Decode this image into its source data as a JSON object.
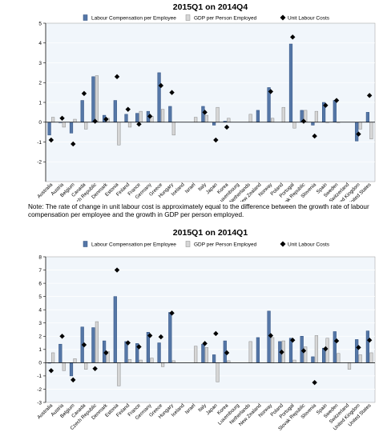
{
  "note": "Note: The rate of change in unit labour cost is approximately equal to the difference between the growth rate of labour compensation per employee and the growth in GDP per person employed.",
  "colors": {
    "plot_bg": "#f1f6fb",
    "labour_comp": "#5577a7",
    "gdp": "#d6d6d6",
    "ulc": "#000000",
    "axis": "#000000",
    "grid": "#ffffff"
  },
  "chart_data": [
    {
      "type": "bar",
      "title": "2015Q1 on 2014Q4",
      "xlabel": "",
      "ylabel": "",
      "ylim": [
        -3,
        5
      ],
      "yticks": [
        -2,
        -1,
        0,
        1,
        2,
        3,
        4,
        5
      ],
      "legend_position": "top",
      "categories": [
        "Australia",
        "Austria",
        "Belgium",
        "Canada",
        "Czech Republic",
        "Denmark",
        "Estonia",
        "Finland",
        "France",
        "Germany",
        "Greece",
        "Hungary",
        "Iceland",
        "Israel",
        "Italy",
        "Japan",
        "Korea",
        "Luxembourg",
        "Netherlands",
        "New Zealand",
        "Norway",
        "Poland",
        "Portugal",
        "Slovak Republic",
        "Slovenia",
        "Spain",
        "Sweden",
        "Switzerland",
        "United Kingdom",
        "United States"
      ],
      "series": [
        {
          "name": "Labour Compensation per Employee",
          "kind": "bar",
          "values": [
            -0.65,
            0.0,
            -0.55,
            1.1,
            2.3,
            0.35,
            1.1,
            0.4,
            0.45,
            0.55,
            2.5,
            0.8,
            null,
            null,
            0.8,
            -0.15,
            0.05,
            null,
            null,
            0.6,
            1.75,
            null,
            3.95,
            0.6,
            -0.15,
            1.0,
            1.1,
            null,
            -0.95,
            0.5
          ]
        },
        {
          "name": "GDP per Person Employed",
          "kind": "bar",
          "values": [
            0.25,
            -0.25,
            0.15,
            -0.35,
            2.35,
            0.2,
            -1.15,
            -0.25,
            0.55,
            0.3,
            0.65,
            -0.65,
            null,
            0.25,
            0.35,
            0.75,
            0.2,
            null,
            0.4,
            null,
            0.2,
            0.75,
            -0.3,
            0.6,
            0.55,
            0.0,
            0.0,
            null,
            -0.35,
            -0.85
          ]
        },
        {
          "name": "Unit Labour Costs",
          "kind": "marker",
          "values": [
            -0.9,
            0.2,
            -1.1,
            1.45,
            0.05,
            0.15,
            2.3,
            0.65,
            -0.1,
            0.3,
            1.85,
            1.5,
            null,
            null,
            0.5,
            -0.9,
            -0.25,
            null,
            null,
            null,
            1.55,
            null,
            4.3,
            0.05,
            -0.7,
            0.85,
            1.1,
            null,
            -0.6,
            1.35
          ]
        }
      ]
    },
    {
      "type": "bar",
      "title": "2015Q1 on 2014Q1",
      "xlabel": "",
      "ylabel": "",
      "ylim": [
        -3,
        8
      ],
      "yticks": [
        -3,
        -2,
        -1,
        0,
        1,
        2,
        3,
        4,
        5,
        6,
        7,
        8
      ],
      "legend_position": "top",
      "categories": [
        "Australia",
        "Austria",
        "Belgium",
        "Canada",
        "Czech Republic",
        "Denmark",
        "Estonia",
        "Finland",
        "France",
        "Germany",
        "Greece",
        "Hungary",
        "Iceland",
        "Israel",
        "Italy",
        "Japan",
        "Korea",
        "Luxembourg",
        "Netherlands",
        "New Zealand",
        "Norway",
        "Poland",
        "Portugal",
        "Slovak Republic",
        "Slovenia",
        "Spain",
        "Sweden",
        "Switzerland",
        "United Kingdom",
        "United States"
      ],
      "series": [
        {
          "name": "Labour Compensation per Employee",
          "kind": "bar",
          "values": [
            0.0,
            1.4,
            -1.0,
            2.7,
            2.65,
            1.65,
            5.0,
            1.6,
            1.45,
            2.3,
            1.5,
            3.8,
            null,
            null,
            1.4,
            0.6,
            1.65,
            null,
            null,
            1.9,
            3.9,
            1.6,
            1.85,
            2.0,
            0.45,
            1.1,
            2.35,
            null,
            1.75,
            2.4
          ]
        },
        {
          "name": "GDP per Person Employed",
          "kind": "bar",
          "values": [
            0.75,
            -0.6,
            0.3,
            -0.5,
            3.1,
            0.85,
            -1.75,
            0.25,
            0.2,
            0.35,
            -0.3,
            0.15,
            null,
            1.25,
            1.15,
            -1.45,
            0.15,
            null,
            1.6,
            null,
            1.9,
            1.65,
            0.2,
            1.2,
            2.05,
            1.85,
            0.7,
            -0.5,
            0.6,
            0.75
          ]
        },
        {
          "name": "Unit Labour Costs",
          "kind": "marker",
          "values": [
            -0.6,
            2.0,
            -1.3,
            1.35,
            -0.45,
            0.75,
            7.0,
            1.5,
            1.2,
            2.05,
            1.95,
            3.75,
            null,
            null,
            1.45,
            2.2,
            0.75,
            null,
            null,
            null,
            2.05,
            0.8,
            1.7,
            0.9,
            -1.5,
            1.05,
            1.65,
            null,
            1.15,
            1.7
          ]
        }
      ]
    }
  ]
}
